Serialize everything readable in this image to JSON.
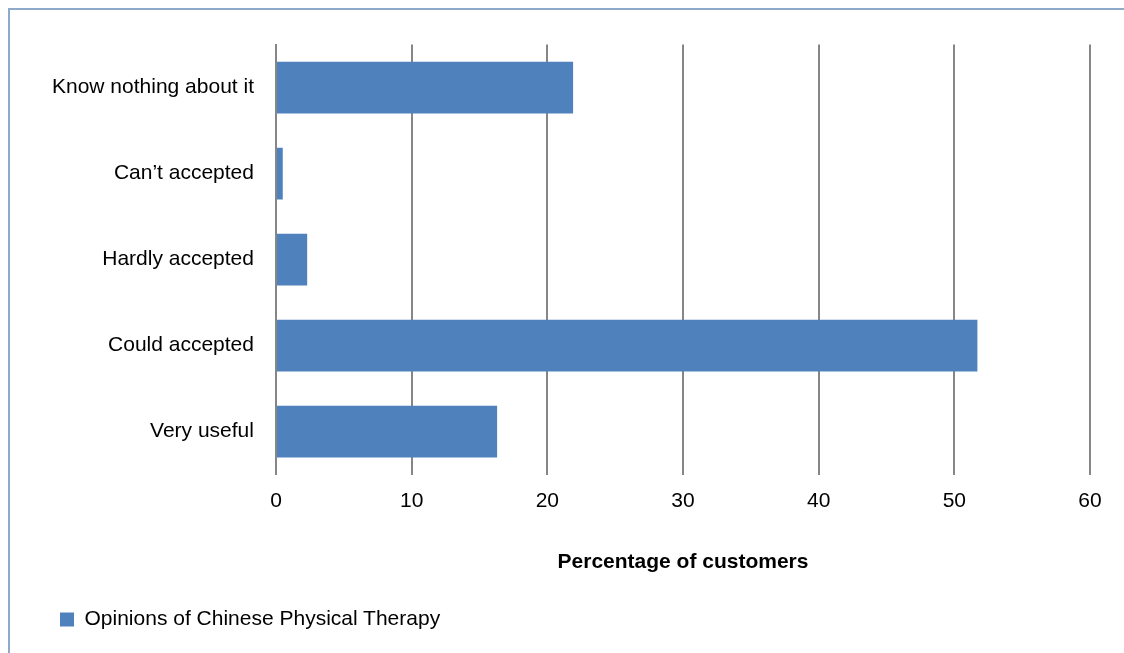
{
  "chart_data": {
    "type": "bar",
    "orientation": "horizontal",
    "xlabel": "Percentage of customers",
    "categories": [
      "Know nothing about it",
      "Can’t accepted",
      "Hardly accepted",
      "Could accepted",
      "Very useful"
    ],
    "series": [
      {
        "name": "Opinions of Chinese Physical Therapy",
        "color": "#4f81bd",
        "values": [
          21.9,
          0.5,
          2.3,
          51.7,
          16.3
        ]
      }
    ],
    "xlim": [
      0,
      60
    ],
    "xticks": [
      0,
      10,
      20,
      30,
      40,
      50,
      60
    ],
    "grid": "x",
    "legend": "bottom left"
  }
}
